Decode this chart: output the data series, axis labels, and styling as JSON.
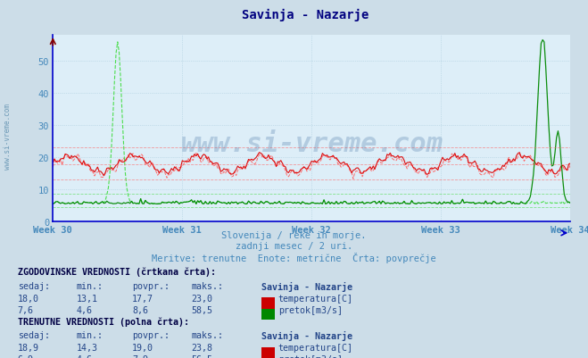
{
  "title": "Savinja - Nazarje",
  "title_color": "#000080",
  "bg_color": "#ccdde8",
  "plot_bg_color": "#ddeef8",
  "subtitle_lines": [
    "Slovenija / reke in morje.",
    "zadnji mesec / 2 uri.",
    "Meritve: trenutne  Enote: metrične  Črta: povprečje"
  ],
  "subtitle_color": "#4488bb",
  "axis_color": "#0000cc",
  "tick_color": "#4488bb",
  "xtick_labels": [
    "Week 30",
    "Week 31",
    "Week 32",
    "Week 33",
    "Week 34"
  ],
  "xtick_positions": [
    0,
    84,
    168,
    252,
    336
  ],
  "ytick_labels": [
    "0",
    "10",
    "20",
    "30",
    "40",
    "50"
  ],
  "ytick_positions": [
    0,
    10,
    20,
    30,
    40,
    50
  ],
  "ymin": 0,
  "ymax": 58,
  "xmin": 0,
  "xmax": 336,
  "grid_color": "#aaccdd",
  "watermark": "www.si-vreme.com",
  "watermark_color": "#336699",
  "watermark_alpha": 0.25,
  "temp_color_dashed": "#ff6060",
  "temp_color_solid": "#dd0000",
  "flow_color_dashed": "#44dd44",
  "flow_color_solid": "#008800",
  "hline_temp_min": 13.1,
  "hline_temp_avg": 17.7,
  "hline_temp_max": 23.0,
  "hline_flow_min": 4.6,
  "hline_flow_avg": 8.6,
  "table_text_color": "#224488",
  "table_bold_color": "#000044",
  "icon_temp_hist": "#cc0000",
  "icon_flow_hist": "#008800",
  "icon_temp_curr": "#cc0000",
  "icon_flow_curr": "#44aa44",
  "sidebar_text": "www.si-vreme.com",
  "sidebar_color": "#5588aa"
}
